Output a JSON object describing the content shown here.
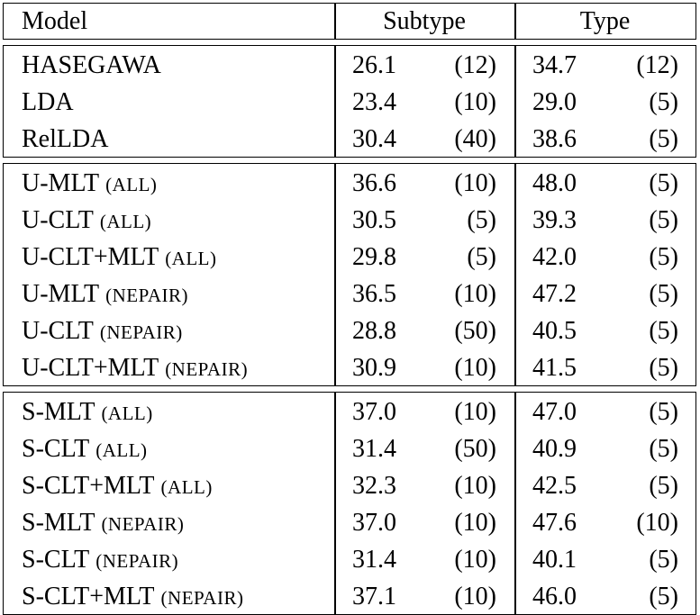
{
  "header": {
    "model": "Model",
    "subtype": "Subtype",
    "type": "Type"
  },
  "groups": [
    [
      {
        "model": "HASEGAWA",
        "subtype": "26.1",
        "subtype_k": "(12)",
        "type": "34.7",
        "type_k": "(12)"
      },
      {
        "model": "LDA",
        "subtype": "23.4",
        "subtype_k": "(10)",
        "type": "29.0",
        "type_k": "(5)"
      },
      {
        "model": "RelLDA",
        "subtype": "30.4",
        "subtype_k": "(40)",
        "type": "38.6",
        "type_k": "(5)"
      }
    ],
    [
      {
        "model": "U-MLT",
        "setting": "(ALL)",
        "subtype": "36.6",
        "subtype_k": "(10)",
        "type": "48.0",
        "type_k": "(5)"
      },
      {
        "model": "U-CLT",
        "setting": "(ALL)",
        "subtype": "30.5",
        "subtype_k": "(5)",
        "type": "39.3",
        "type_k": "(5)"
      },
      {
        "model": "U-CLT+MLT",
        "setting": "(ALL)",
        "subtype": "29.8",
        "subtype_k": "(5)",
        "type": "42.0",
        "type_k": "(5)"
      },
      {
        "model": "U-MLT",
        "setting": "(NEPAIR)",
        "subtype": "36.5",
        "subtype_k": "(10)",
        "type": "47.2",
        "type_k": "(5)"
      },
      {
        "model": "U-CLT",
        "setting": "(NEPAIR)",
        "subtype": "28.8",
        "subtype_k": "(50)",
        "type": "40.5",
        "type_k": "(5)"
      },
      {
        "model": "U-CLT+MLT",
        "setting": "(NEPAIR)",
        "subtype": "30.9",
        "subtype_k": "(10)",
        "type": "41.5",
        "type_k": "(5)"
      }
    ],
    [
      {
        "model": "S-MLT",
        "setting": "(ALL)",
        "subtype": "37.0",
        "subtype_k": "(10)",
        "type": "47.0",
        "type_k": "(5)"
      },
      {
        "model": "S-CLT",
        "setting": "(ALL)",
        "subtype": "31.4",
        "subtype_k": "(50)",
        "type": "40.9",
        "type_k": "(5)"
      },
      {
        "model": "S-CLT+MLT",
        "setting": "(ALL)",
        "subtype": "32.3",
        "subtype_k": "(10)",
        "type": "42.5",
        "type_k": "(5)"
      },
      {
        "model": "S-MLT",
        "setting": "(NEPAIR)",
        "subtype": "37.0",
        "subtype_k": "(10)",
        "type": "47.6",
        "type_k": "(10)"
      },
      {
        "model": "S-CLT",
        "setting": "(NEPAIR)",
        "subtype": "31.4",
        "subtype_k": "(10)",
        "type": "40.1",
        "type_k": "(5)"
      },
      {
        "model": "S-CLT+MLT",
        "setting": "(NEPAIR)",
        "subtype": "37.1",
        "subtype_k": "(10)",
        "type": "46.0",
        "type_k": "(5)"
      }
    ]
  ]
}
